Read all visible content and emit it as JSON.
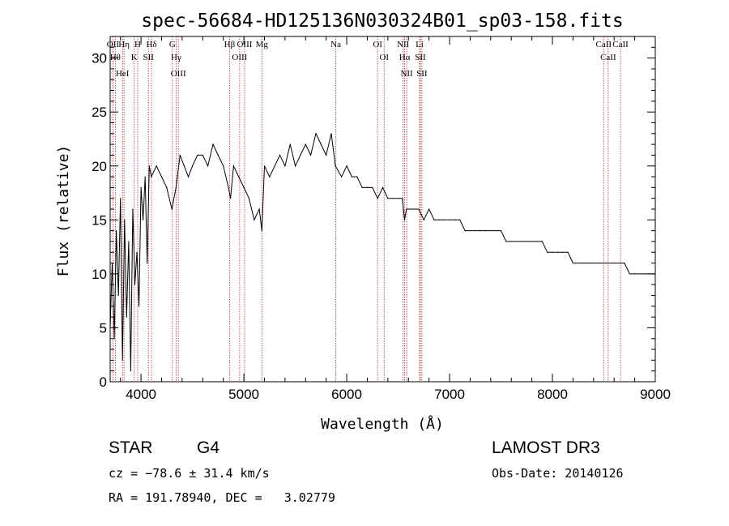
{
  "chart_data": {
    "type": "line",
    "title": "spec-56684-HD125136N030324B01_sp03-158.fits",
    "xlabel": "Wavelength (Å)",
    "ylabel": "Flux (relative)",
    "xlim": [
      3700,
      9000
    ],
    "ylim": [
      0,
      32
    ],
    "xticks": [
      4000,
      5000,
      6000,
      7000,
      8000,
      9000
    ],
    "yticks": [
      0,
      5,
      10,
      15,
      20,
      25,
      30
    ],
    "xtick_labels": [
      "4000",
      "5000",
      "6000",
      "7000",
      "8000",
      "9000"
    ],
    "ytick_labels": [
      "0",
      "5",
      "10",
      "15",
      "20",
      "25",
      "30"
    ],
    "series": [
      {
        "name": "flux",
        "x": [
          3700,
          3720,
          3740,
          3760,
          3780,
          3800,
          3820,
          3840,
          3860,
          3880,
          3900,
          3920,
          3940,
          3960,
          3980,
          4000,
          4020,
          4040,
          4060,
          4080,
          4100,
          4150,
          4200,
          4250,
          4300,
          4340,
          4380,
          4420,
          4460,
          4500,
          4550,
          4600,
          4650,
          4700,
          4750,
          4800,
          4850,
          4870,
          4900,
          4950,
          5000,
          5050,
          5100,
          5150,
          5175,
          5200,
          5250,
          5300,
          5350,
          5400,
          5450,
          5500,
          5550,
          5600,
          5650,
          5700,
          5750,
          5800,
          5850,
          5890,
          5950,
          6000,
          6050,
          6100,
          6150,
          6200,
          6250,
          6300,
          6350,
          6400,
          6450,
          6500,
          6540,
          6563,
          6580,
          6620,
          6650,
          6700,
          6750,
          6800,
          6850,
          6900,
          6950,
          7000,
          7050,
          7100,
          7150,
          7200,
          7250,
          7300,
          7350,
          7400,
          7450,
          7500,
          7550,
          7600,
          7650,
          7700,
          7750,
          7800,
          7850,
          7900,
          7950,
          8000,
          8050,
          8100,
          8150,
          8200,
          8250,
          8300,
          8350,
          8400,
          8450,
          8498,
          8542,
          8600,
          8662,
          8700,
          8750,
          8800,
          8850,
          8900,
          8950,
          9000
        ],
        "y": [
          5,
          11,
          4,
          14,
          8,
          17,
          2,
          15,
          6,
          13,
          1,
          16,
          9,
          12,
          7,
          18,
          15,
          19,
          11,
          20,
          19,
          20,
          19,
          18,
          16,
          18,
          21,
          20,
          19,
          20,
          21,
          21,
          20,
          22,
          21,
          20,
          18,
          17,
          20,
          19,
          18,
          17,
          15,
          16,
          14,
          20,
          19,
          20,
          21,
          20,
          22,
          20,
          21,
          22,
          21,
          23,
          22,
          21,
          23,
          20,
          19,
          20,
          19,
          19,
          18,
          18,
          18,
          17,
          18,
          17,
          17,
          17,
          17,
          15,
          16,
          16,
          16,
          16,
          15,
          16,
          15,
          15,
          15,
          15,
          15,
          15,
          14,
          14,
          14,
          14,
          14,
          14,
          14,
          14,
          13,
          13,
          13,
          13,
          13,
          13,
          13,
          13,
          12,
          12,
          12,
          12,
          12,
          11,
          11,
          11,
          11,
          11,
          11,
          11,
          11,
          11,
          11,
          11,
          10,
          10,
          10,
          10,
          10,
          10
        ]
      }
    ],
    "lines": [
      {
        "label": "OII",
        "x": 3727
      },
      {
        "label": "Hθ",
        "x": 3750
      },
      {
        "label": "HeI",
        "x": 3820
      },
      {
        "label": "Hη",
        "x": 3835
      },
      {
        "label": "K",
        "x": 3934
      },
      {
        "label": "H",
        "x": 3968
      },
      {
        "label": "Hδ",
        "x": 4102
      },
      {
        "label": "SII",
        "x": 4072
      },
      {
        "label": "OIII",
        "x": 4363
      },
      {
        "label": "Hγ",
        "x": 4341
      },
      {
        "label": "G",
        "x": 4305
      },
      {
        "label": "Hβ",
        "x": 4861
      },
      {
        "label": "OIII",
        "x": 4959
      },
      {
        "label": "OIII",
        "x": 5007
      },
      {
        "label": "Mg",
        "x": 5175
      },
      {
        "label": "Na",
        "x": 5894
      },
      {
        "label": "OI",
        "x": 6300
      },
      {
        "label": "OI",
        "x": 6364
      },
      {
        "label": "Hα",
        "x": 6563
      },
      {
        "label": "NII",
        "x": 6548
      },
      {
        "label": "NII",
        "x": 6583
      },
      {
        "label": "SII",
        "x": 6716
      },
      {
        "label": "Li",
        "x": 6708
      },
      {
        "label": "SII",
        "x": 6731
      },
      {
        "label": "CaII",
        "x": 8498
      },
      {
        "label": "CaII",
        "x": 8542
      },
      {
        "label": "CaII",
        "x": 8662
      }
    ]
  },
  "info": {
    "object_class": "STAR",
    "subclass": "G4",
    "survey": "LAMOST DR3",
    "cz": "cz = −78.6 ± 31.4 km/s",
    "obs_date": "Obs-Date: 20140126",
    "radec": "RA = 191.78940, DEC =   3.02779"
  }
}
